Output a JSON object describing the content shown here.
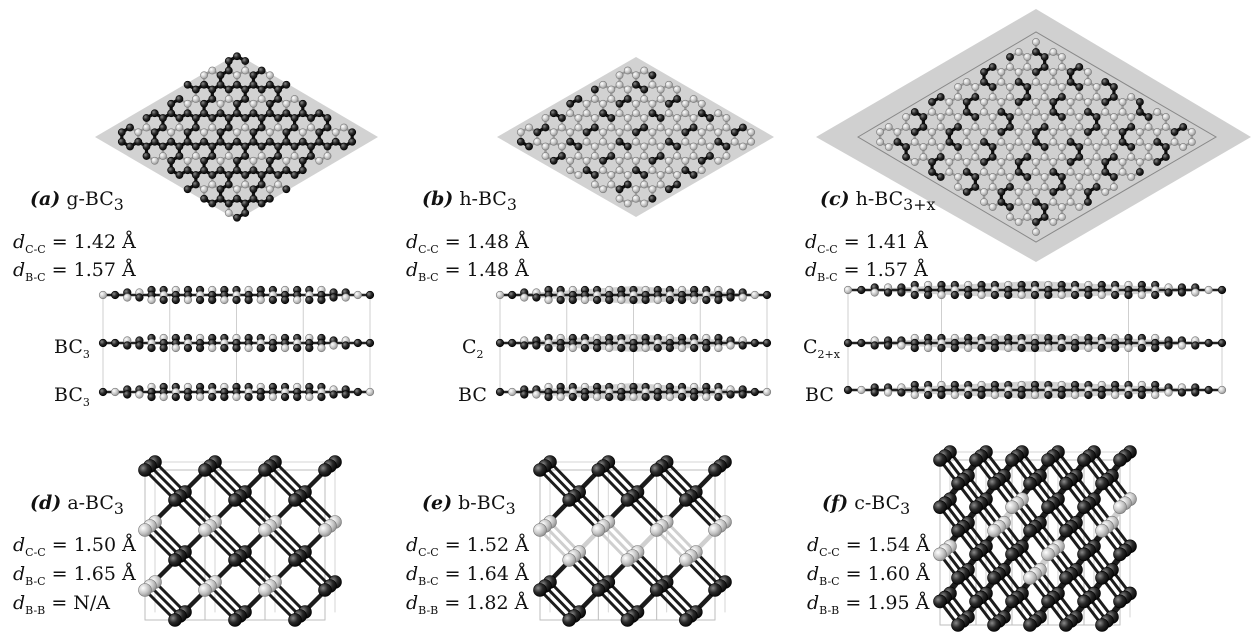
{
  "panels": [
    {
      "id": "a",
      "letter": "(a)",
      "name": "g-BC",
      "sub": "3",
      "distances": [
        {
          "pair": "C-C",
          "value": "= 1.42 Å"
        },
        {
          "pair": "B-C",
          "value": "= 1.57 Å"
        }
      ],
      "layers": [
        {
          "text": "BC",
          "sub": "3"
        },
        {
          "text": "BC",
          "sub": "3"
        }
      ]
    },
    {
      "id": "b",
      "letter": "(b)",
      "name": "h-BC",
      "sub": "3",
      "distances": [
        {
          "pair": "C-C",
          "value": "= 1.48 Å"
        },
        {
          "pair": "B-C",
          "value": "= 1.48 Å"
        }
      ],
      "layers": [
        {
          "text": "C",
          "sub": "2"
        },
        {
          "text": "BC",
          "sub": ""
        }
      ]
    },
    {
      "id": "c",
      "letter": "(c)",
      "name": "h-BC",
      "sub": "3+x",
      "distances": [
        {
          "pair": "C-C",
          "value": "= 1.41 Å"
        },
        {
          "pair": "B-C",
          "value": "= 1.57 Å"
        }
      ],
      "layers": [
        {
          "text": "C",
          "sub": "2+x"
        },
        {
          "text": "BC",
          "sub": ""
        }
      ]
    },
    {
      "id": "d",
      "letter": "(d)",
      "name": "a-BC",
      "sub": "3",
      "distances": [
        {
          "pair": "C-C",
          "value": "= 1.50 Å"
        },
        {
          "pair": "B-C",
          "value": "= 1.65 Å"
        },
        {
          "pair": "B-B",
          "value": "= N/A"
        }
      ]
    },
    {
      "id": "e",
      "letter": "(e)",
      "name": "b-BC",
      "sub": "3",
      "distances": [
        {
          "pair": "C-C",
          "value": "= 1.52 Å"
        },
        {
          "pair": "B-C",
          "value": "= 1.64 Å"
        },
        {
          "pair": "B-B",
          "value": "= 1.82 Å"
        }
      ]
    },
    {
      "id": "f",
      "letter": "(f)",
      "name": "c-BC",
      "sub": "3",
      "distances": [
        {
          "pair": "C-C",
          "value": "= 1.54 Å"
        },
        {
          "pair": "B-C",
          "value": "= 1.60 Å"
        },
        {
          "pair": "B-B",
          "value": "= 1.95 Å"
        }
      ]
    }
  ],
  "distance_symbol": "d",
  "colors": {
    "carbon": "#1a1a1a",
    "boron": "#c8c8c8",
    "cell": "#d0d0d0",
    "sheet": "#cfcfcf"
  }
}
